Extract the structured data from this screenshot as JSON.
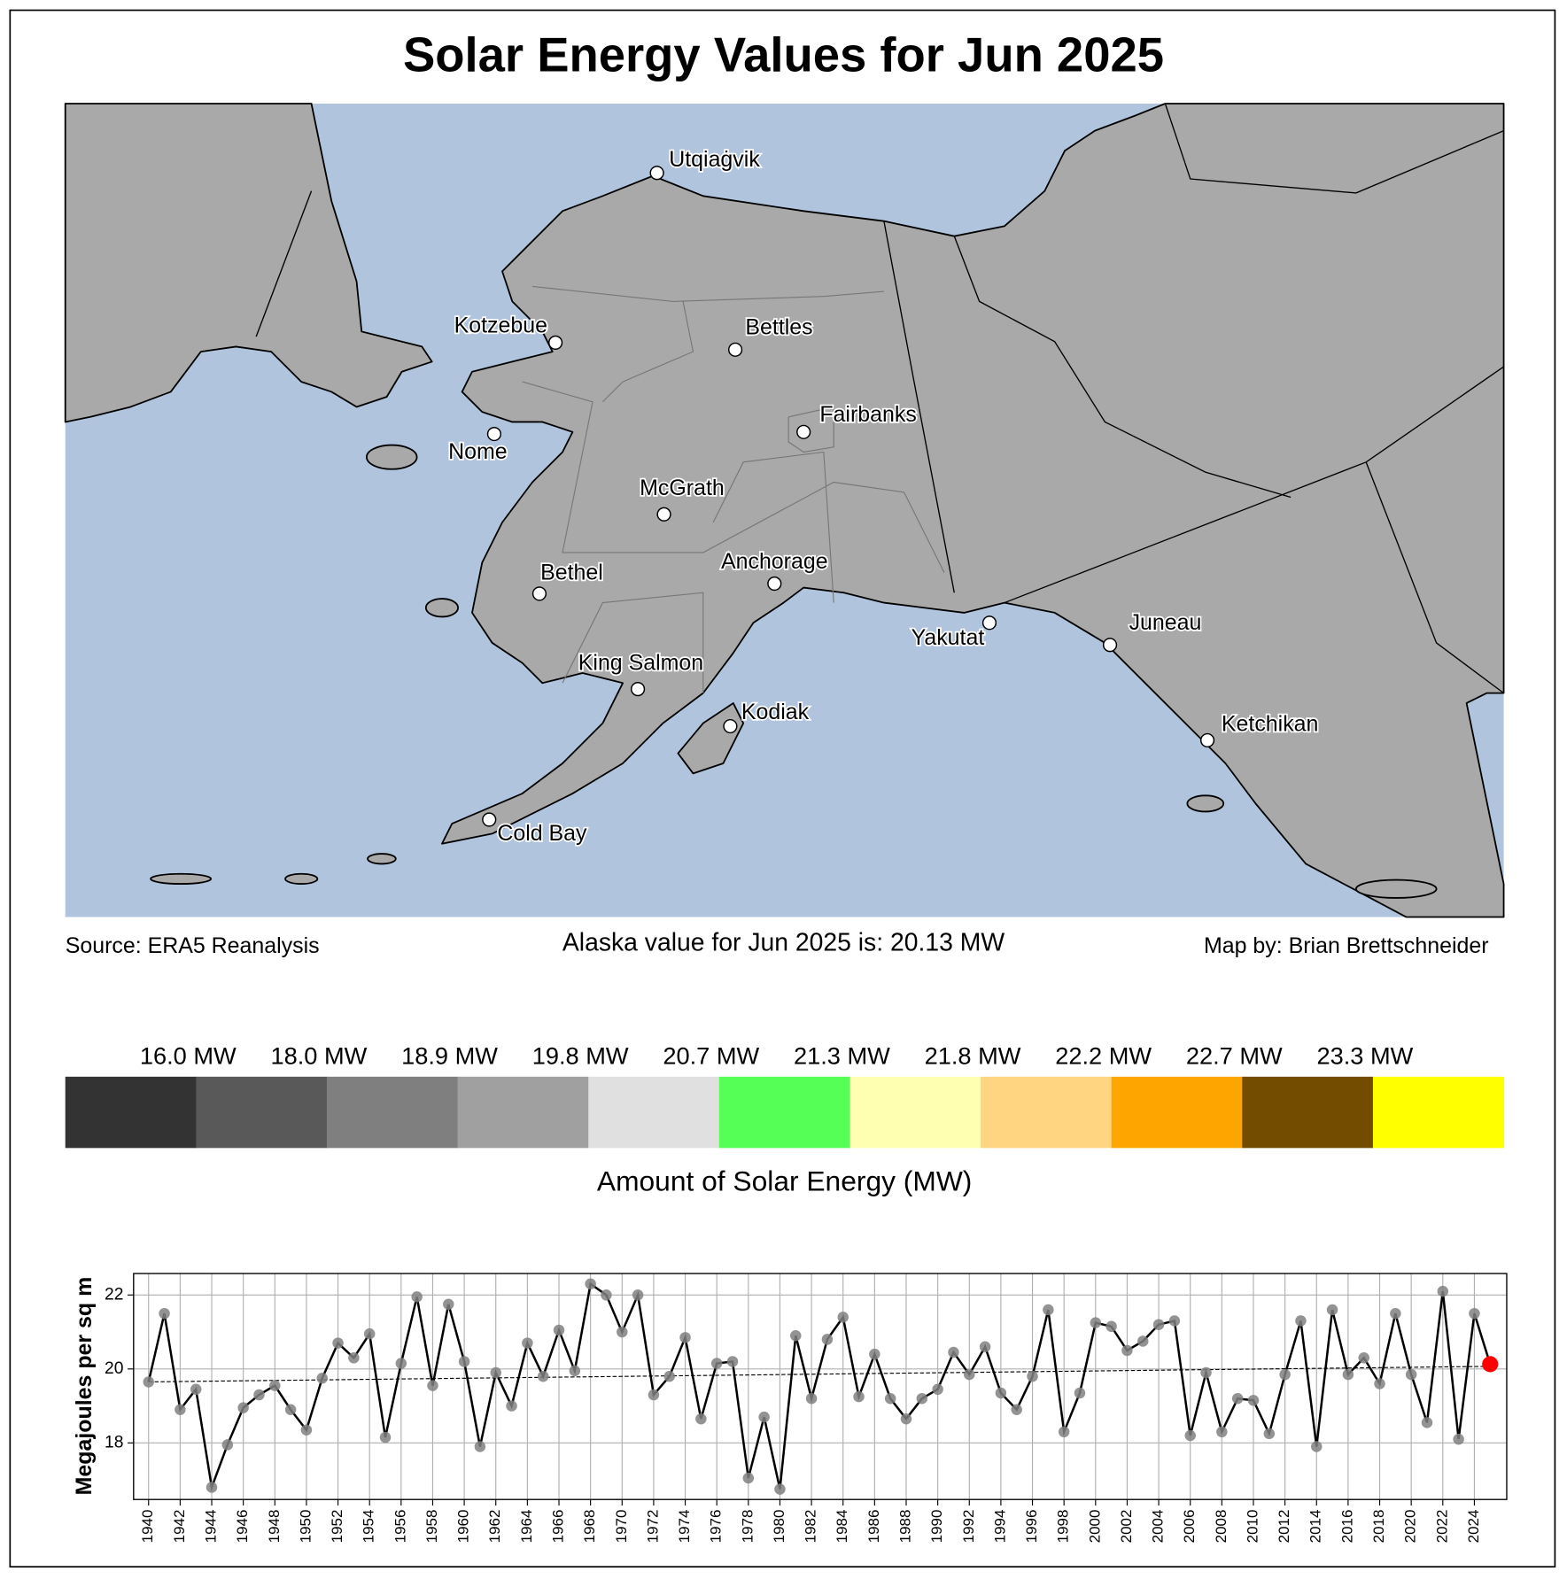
{
  "title": "Solar Energy Values for Jun 2025",
  "map": {
    "cities": [
      "Utqiaġvik",
      "Kotzebue",
      "Bettles",
      "Fairbanks",
      "Nome",
      "McGrath",
      "Bethel",
      "Anchorage",
      "Yakutat",
      "Juneau",
      "King Salmon",
      "Kodiak",
      "Ketchikan",
      "Cold Bay"
    ]
  },
  "footer": {
    "source": "Source: ERA5 Reanalysis",
    "summary": "Alaska value for Jun 2025 is: 20.13 MW",
    "credit": "Map by: Brian Brettschneider"
  },
  "colorbar": {
    "labels": [
      "16.0 MW",
      "18.0 MW",
      "18.9 MW",
      "19.8 MW",
      "20.7 MW",
      "21.3 MW",
      "21.8 MW",
      "22.2 MW",
      "22.7 MW",
      "23.3 MW"
    ],
    "colors": [
      "#333333",
      "#595959",
      "#7f7f7f",
      "#a0a0a0",
      "#e0e0e0",
      "#55ff55",
      "#ffffb2",
      "#ffd582",
      "#ffa500",
      "#734c00",
      "#ffff00"
    ],
    "title": "Amount of Solar Energy (MW)"
  },
  "chart_data": {
    "type": "line",
    "ylabel": "Megajoules per sq m",
    "x": [
      1940,
      1941,
      1942,
      1943,
      1944,
      1945,
      1946,
      1947,
      1948,
      1949,
      1950,
      1951,
      1952,
      1953,
      1954,
      1955,
      1956,
      1957,
      1958,
      1959,
      1960,
      1961,
      1962,
      1963,
      1964,
      1965,
      1966,
      1967,
      1968,
      1969,
      1970,
      1971,
      1972,
      1973,
      1974,
      1975,
      1976,
      1977,
      1978,
      1979,
      1980,
      1981,
      1982,
      1983,
      1984,
      1985,
      1986,
      1987,
      1988,
      1989,
      1990,
      1991,
      1992,
      1993,
      1994,
      1995,
      1996,
      1997,
      1998,
      1999,
      2000,
      2001,
      2002,
      2003,
      2004,
      2005,
      2006,
      2007,
      2008,
      2009,
      2010,
      2011,
      2012,
      2013,
      2014,
      2015,
      2016,
      2017,
      2018,
      2019,
      2020,
      2021,
      2022,
      2023,
      2024,
      2025
    ],
    "series": [
      {
        "color": "#000000",
        "marker_color": "#808080",
        "highlight_color": "#ff0000",
        "values": [
          19.65,
          21.5,
          18.9,
          19.45,
          16.8,
          17.95,
          18.95,
          19.3,
          19.55,
          18.9,
          18.35,
          19.75,
          20.7,
          20.3,
          20.95,
          18.15,
          20.15,
          21.95,
          19.55,
          21.75,
          20.2,
          17.9,
          19.9,
          19.0,
          20.7,
          19.8,
          21.05,
          19.95,
          22.3,
          22.0,
          21.0,
          22.0,
          19.3,
          19.8,
          20.85,
          18.65,
          20.15,
          20.2,
          17.05,
          18.7,
          16.75,
          20.9,
          19.2,
          20.8,
          21.4,
          19.25,
          20.4,
          19.2,
          18.65,
          19.2,
          19.45,
          20.45,
          19.85,
          20.6,
          19.35,
          18.9,
          19.8,
          21.6,
          18.3,
          19.35,
          21.25,
          21.15,
          20.5,
          20.75,
          21.2,
          21.3,
          18.2,
          19.9,
          18.3,
          19.2,
          19.15,
          18.25,
          19.85,
          21.3,
          17.9,
          21.6,
          19.85,
          20.3,
          19.6,
          21.5,
          19.85,
          18.55,
          22.1,
          18.1,
          21.5,
          20.13
        ]
      }
    ],
    "trend_values": [
      19.65,
      20.07
    ],
    "xlim": [
      1939.05,
      2026.05
    ],
    "ylim": [
      16.47,
      22.58
    ],
    "xticks": [
      1940,
      1942,
      1944,
      1946,
      1948,
      1950,
      1952,
      1954,
      1956,
      1958,
      1960,
      1962,
      1964,
      1966,
      1968,
      1970,
      1972,
      1974,
      1976,
      1978,
      1980,
      1982,
      1984,
      1986,
      1988,
      1990,
      1992,
      1994,
      1996,
      1998,
      2000,
      2002,
      2004,
      2006,
      2008,
      2010,
      2012,
      2014,
      2016,
      2018,
      2020,
      2022,
      2024
    ],
    "yticks": [
      18,
      20,
      22
    ],
    "grid": true
  }
}
